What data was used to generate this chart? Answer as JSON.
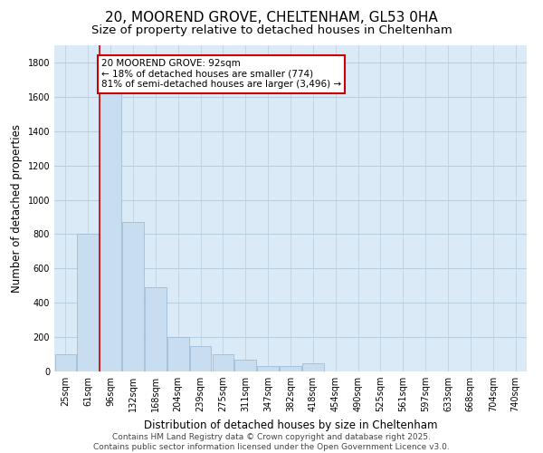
{
  "title_line1": "20, MOOREND GROVE, CHELTENHAM, GL53 0HA",
  "title_line2": "Size of property relative to detached houses in Cheltenham",
  "xlabel": "Distribution of detached houses by size in Cheltenham",
  "ylabel": "Number of detached properties",
  "bar_color": "#c8ddef",
  "bar_edge_color": "#a0bdd8",
  "grid_color": "#b8cfe0",
  "background_color": "#daeaf6",
  "annotation_box_color": "#cc0000",
  "vline_color": "#cc0000",
  "categories": [
    "25sqm",
    "61sqm",
    "96sqm",
    "132sqm",
    "168sqm",
    "204sqm",
    "239sqm",
    "275sqm",
    "311sqm",
    "347sqm",
    "382sqm",
    "418sqm",
    "454sqm",
    "490sqm",
    "525sqm",
    "561sqm",
    "597sqm",
    "633sqm",
    "668sqm",
    "704sqm",
    "740sqm"
  ],
  "values": [
    100,
    800,
    1650,
    870,
    490,
    200,
    150,
    100,
    70,
    30,
    30,
    50,
    0,
    0,
    0,
    0,
    0,
    0,
    0,
    0,
    0
  ],
  "ylim": [
    0,
    1900
  ],
  "yticks": [
    0,
    200,
    400,
    600,
    800,
    1000,
    1200,
    1400,
    1600,
    1800
  ],
  "vline_x": 1.5,
  "annotation_text": "20 MOOREND GROVE: 92sqm\n← 18% of detached houses are smaller (774)\n81% of semi-detached houses are larger (3,496) →",
  "footer_line1": "Contains HM Land Registry data © Crown copyright and database right 2025.",
  "footer_line2": "Contains public sector information licensed under the Open Government Licence v3.0.",
  "title_fontsize": 11,
  "subtitle_fontsize": 9.5,
  "axis_label_fontsize": 8.5,
  "tick_fontsize": 7,
  "annotation_fontsize": 7.5,
  "footer_fontsize": 6.5
}
